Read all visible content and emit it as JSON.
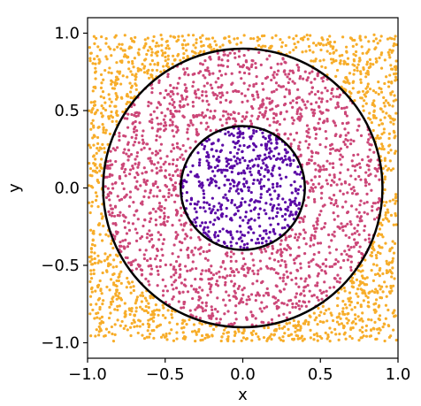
{
  "chart_data": {
    "type": "scatter",
    "title": "",
    "xlabel": "x",
    "ylabel": "y",
    "xlim": [
      -1.0,
      1.0
    ],
    "ylim": [
      -1.1,
      1.1
    ],
    "xticks": [
      -1.0,
      -0.5,
      0.0,
      0.5,
      1.0
    ],
    "yticks": [
      -1.0,
      -0.5,
      0.0,
      0.5,
      1.0
    ],
    "xtick_labels": [
      "−1.0",
      "−0.5",
      "0.0",
      "0.5",
      "1.0"
    ],
    "ytick_labels": [
      "−1.0",
      "−0.5",
      "0.0",
      "0.5",
      "1.0"
    ],
    "grid": false,
    "legend": "none",
    "sample_domain": {
      "x": [
        -0.99,
        0.99
      ],
      "y": [
        -0.99,
        0.99
      ]
    },
    "regions": [
      {
        "r_min": 0.0,
        "r_max": 0.4,
        "color": "#5b0aa6",
        "approx_points": 550
      },
      {
        "r_min": 0.4,
        "r_max": 0.9,
        "color": "#cc4778",
        "approx_points": 1700
      },
      {
        "r_min": 0.9,
        "r_max": null,
        "color": "#f7ad2a",
        "approx_points": 1450
      }
    ],
    "circles": [
      {
        "center": [
          0.0,
          0.0
        ],
        "radius": 0.4,
        "color": "#000000"
      },
      {
        "center": [
          0.0,
          0.0
        ],
        "radius": 0.9,
        "color": "#000000"
      }
    ]
  }
}
